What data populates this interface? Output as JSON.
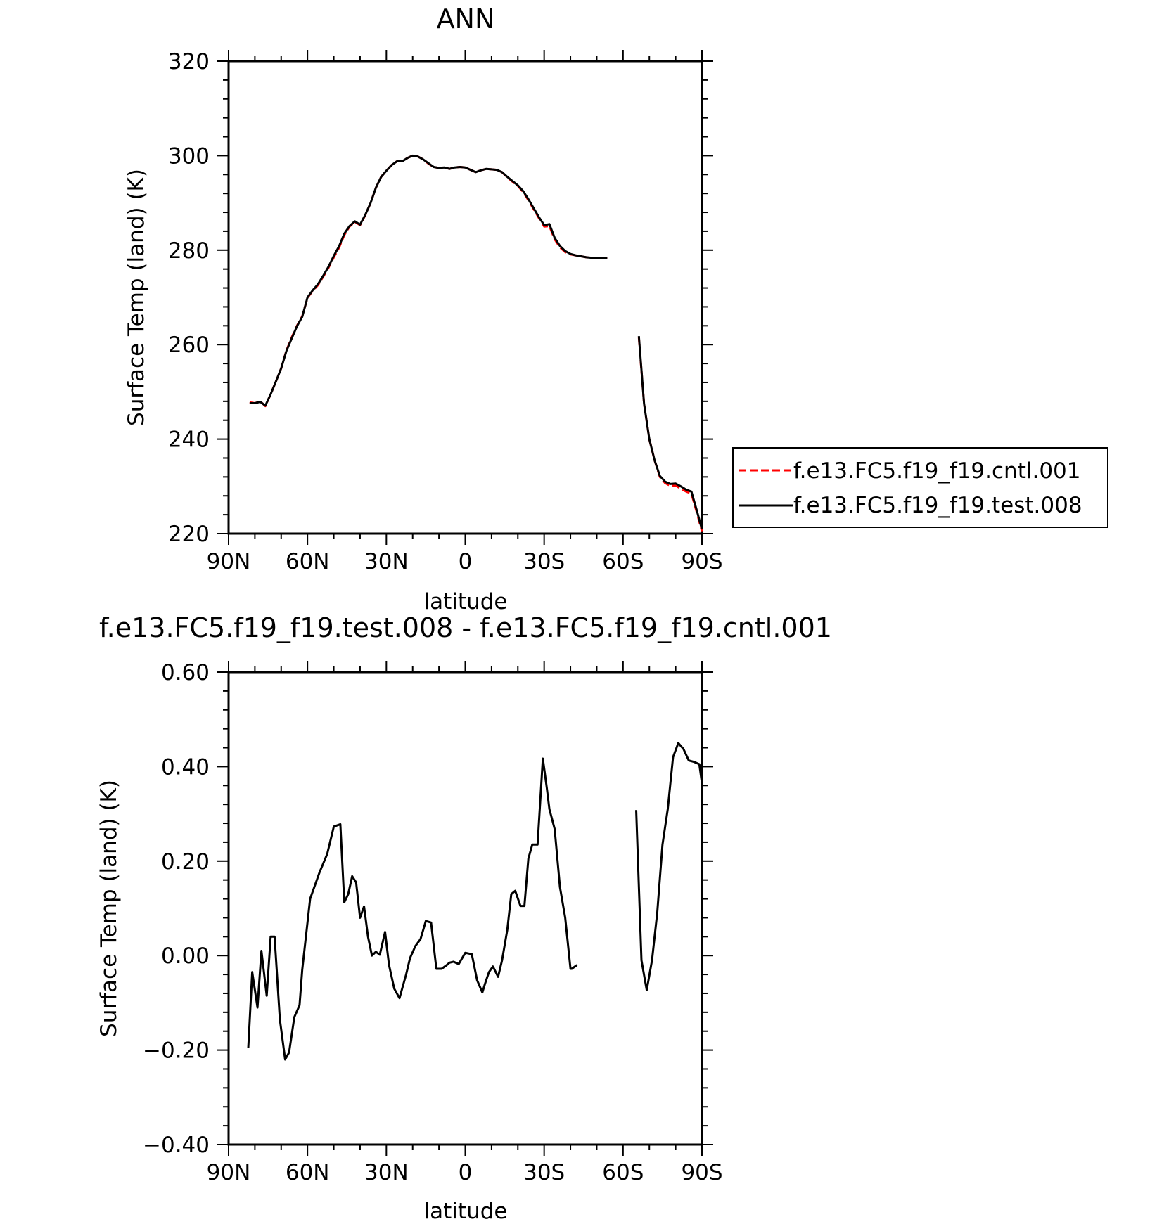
{
  "chart_data": [
    {
      "type": "line",
      "title": "ANN",
      "xlabel": "latitude",
      "ylabel": "Surface Temp (land) (K)",
      "xlim": [
        90,
        -90
      ],
      "ylim": [
        220,
        320
      ],
      "x_ticks": [
        90,
        60,
        30,
        0,
        -30,
        -60,
        -90
      ],
      "x_tick_labels": [
        "90N",
        "60N",
        "30N",
        "0",
        "30S",
        "60S",
        "90S"
      ],
      "y_ticks": [
        220,
        240,
        260,
        280,
        300,
        320
      ],
      "y_tick_labels": [
        "220",
        "240",
        "260",
        "280",
        "300",
        "320"
      ],
      "legend_position": "right",
      "series": [
        {
          "name": "f.e13.FC5.f19_f19.cntl.001",
          "color": "#ff0000",
          "style": "dashed",
          "segments": [
            {
              "x": [
                82,
                80,
                78,
                76,
                74,
                72,
                70,
                68,
                66,
                64,
                62,
                60,
                58,
                56,
                54,
                52,
                50,
                48,
                46,
                44,
                42,
                40,
                38,
                36,
                34,
                32,
                30,
                28,
                26,
                24,
                22,
                20,
                18,
                16,
                14,
                12,
                10,
                8,
                6,
                4,
                2,
                0,
                -2,
                -4,
                -6,
                -8,
                -10,
                -12,
                -14,
                -16,
                -18,
                -20,
                -22,
                -24,
                -26,
                -28,
                -30,
                -32,
                -34,
                -36,
                -38,
                -40,
                -42,
                -44,
                -46,
                -48,
                -50,
                -52,
                -54
              ],
              "y": [
                247.8,
                247.6,
                248.0,
                247.0,
                249.5,
                252.2,
                255.0,
                258.8,
                261.5,
                264.0,
                266.0,
                269.9,
                271.4,
                272.6,
                274.4,
                276.3,
                278.5,
                280.5,
                283.2,
                285.0,
                286.0,
                285.3,
                287.4,
                290.0,
                293.2,
                295.5,
                296.8,
                298.0,
                298.8,
                298.8,
                299.5,
                300.0,
                299.8,
                299.2,
                298.3,
                297.6,
                297.4,
                297.5,
                297.2,
                297.5,
                297.6,
                297.5,
                297.0,
                296.5,
                296.9,
                297.2,
                297.1,
                297.0,
                296.5,
                295.4,
                294.5,
                293.6,
                292.3,
                290.6,
                288.7,
                286.8,
                285.0,
                285.1,
                282.3,
                280.6,
                279.6,
                279.1,
                278.9,
                278.7,
                278.5,
                278.4,
                278.4,
                278.4,
                278.4
              ]
            },
            {
              "x": [
                -66,
                -68,
                -70,
                -72,
                -74,
                -76,
                -78,
                -80,
                -82,
                -84,
                -86,
                -88,
                -90
              ],
              "y": [
                261.5,
                247.5,
                240.0,
                235.5,
                232.0,
                230.7,
                230.1,
                230.2,
                229.5,
                228.9,
                228.5,
                224.6,
                220.5
              ]
            }
          ]
        },
        {
          "name": "f.e13.FC5.f19_f19.test.008",
          "color": "#000000",
          "style": "solid",
          "segments": [
            {
              "x": [
                82,
                80,
                78,
                76,
                74,
                72,
                70,
                68,
                66,
                64,
                62,
                60,
                58,
                56,
                54,
                52,
                50,
                48,
                46,
                44,
                42,
                40,
                38,
                36,
                34,
                32,
                30,
                28,
                26,
                24,
                22,
                20,
                18,
                16,
                14,
                12,
                10,
                8,
                6,
                4,
                2,
                0,
                -2,
                -4,
                -6,
                -8,
                -10,
                -12,
                -14,
                -16,
                -18,
                -20,
                -22,
                -24,
                -26,
                -28,
                -30,
                -32,
                -34,
                -36,
                -38,
                -40,
                -42,
                -44,
                -46,
                -48,
                -50,
                -52,
                -54
              ],
              "y": [
                247.6,
                247.6,
                247.9,
                247.1,
                249.5,
                252.2,
                255.0,
                258.7,
                261.3,
                263.9,
                265.9,
                270.0,
                271.5,
                272.8,
                274.6,
                276.5,
                278.8,
                280.8,
                283.5,
                285.1,
                286.1,
                285.4,
                287.5,
                290.0,
                293.2,
                295.5,
                296.8,
                298.0,
                298.8,
                298.8,
                299.5,
                300.0,
                299.8,
                299.2,
                298.4,
                297.6,
                297.4,
                297.5,
                297.2,
                297.5,
                297.6,
                297.5,
                297.0,
                296.5,
                296.9,
                297.2,
                297.1,
                297.0,
                296.5,
                295.5,
                294.6,
                293.7,
                292.5,
                290.8,
                288.9,
                287.0,
                285.3,
                285.5,
                282.6,
                280.9,
                279.8,
                279.2,
                278.9,
                278.7,
                278.5,
                278.4,
                278.4,
                278.4,
                278.4
              ]
            },
            {
              "x": [
                -66,
                -68,
                -70,
                -72,
                -74,
                -76,
                -78,
                -80,
                -82,
                -84,
                -86,
                -88,
                -90
              ],
              "y": [
                261.8,
                247.5,
                240.0,
                235.5,
                232.2,
                231.0,
                230.5,
                230.6,
                230.0,
                229.3,
                228.9,
                225.0,
                220.9
              ]
            }
          ]
        }
      ]
    },
    {
      "type": "line",
      "title": "f.e13.FC5.f19_f19.test.008 - f.e13.FC5.f19_f19.cntl.001",
      "xlabel": "latitude",
      "ylabel": "Surface Temp (land) (K)",
      "xlim": [
        90,
        -90
      ],
      "ylim": [
        -0.4,
        0.6
      ],
      "x_ticks": [
        90,
        60,
        30,
        0,
        -30,
        -60,
        -90
      ],
      "x_tick_labels": [
        "90N",
        "60N",
        "30N",
        "0",
        "30S",
        "60S",
        "90S"
      ],
      "y_ticks": [
        -0.4,
        -0.2,
        0.0,
        0.2,
        0.4,
        0.6
      ],
      "y_tick_labels": [
        "−0.40",
        "−0.20",
        "0.00",
        "0.20",
        "0.40",
        "0.60"
      ],
      "series": [
        {
          "color": "#000000",
          "style": "solid",
          "segments": [
            {
              "x": [
                82.5,
                81,
                79,
                77.5,
                75.5,
                74,
                72.5,
                70.5,
                68.5,
                67,
                65,
                63,
                62,
                59,
                55.5,
                52.5,
                50,
                47.5,
                46,
                44.5,
                43,
                41.5,
                40,
                38.5,
                37,
                35.5,
                34,
                32.5,
                30.5,
                29,
                27,
                25,
                22.5,
                21,
                19,
                17,
                15,
                13,
                11,
                9,
                7,
                6,
                4.5,
                2.5,
                0,
                -2.5,
                -4.5,
                -6.5,
                -7.5,
                -9,
                -10.5,
                -12.5,
                -14,
                -16,
                -17.5,
                -19,
                -21,
                -22.5,
                -24,
                -25.5,
                -27.5,
                -29.5,
                -31,
                -32,
                -34,
                -36,
                -38,
                -40,
                -40.5,
                -42.5,
                -44,
                -46,
                -48,
                -50,
                -51,
                -52.5,
                -54
              ],
              "y": [
                -0.195,
                -0.035,
                -0.11,
                0.01,
                -0.085,
                0.04,
                0.04,
                -0.135,
                -0.22,
                -0.205,
                -0.13,
                -0.105,
                -0.03,
                0.12,
                0.175,
                0.215,
                0.273,
                0.278,
                0.113,
                0.13,
                0.168,
                0.155,
                0.08,
                0.104,
                0.04,
                0.0,
                0.008,
                0.002,
                0.05,
                -0.02,
                -0.07,
                -0.09,
                -0.04,
                -0.005,
                0.02,
                0.035,
                0.073,
                0.07,
                -0.028,
                -0.028,
                -0.02,
                -0.015,
                -0.013,
                -0.018,
                0.006,
                0.003,
                -0.052,
                -0.078,
                -0.06,
                -0.035,
                -0.023,
                -0.045,
                -0.01,
                0.055,
                0.13,
                0.137,
                0.105,
                0.105,
                0.205,
                0.235,
                0.235,
                0.417,
                0.355,
                0.31,
                0.268,
                0.145,
                0.08,
                -0.028,
                -0.028,
                -0.02,
                null,
                null,
                null,
                null,
                null,
                null,
                null
              ]
            },
            {
              "x": [
                -65,
                -67,
                -69,
                -71,
                -73,
                -75,
                -77,
                -79,
                -81,
                -83,
                -85,
                -87,
                -89,
                -90
              ],
              "y": [
                0.308,
                -0.01,
                -0.073,
                -0.01,
                0.09,
                0.235,
                0.31,
                0.42,
                0.45,
                0.437,
                0.413,
                0.41,
                0.405,
                0.365
              ]
            }
          ]
        }
      ]
    }
  ]
}
